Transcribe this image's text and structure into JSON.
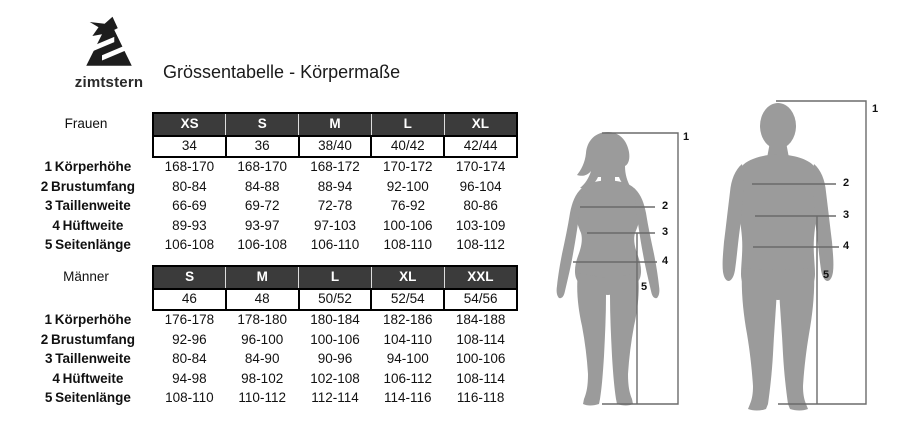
{
  "brand": {
    "name": "zimtstern"
  },
  "title": "Grössentabelle - Körpermaße",
  "tables": [
    {
      "group_label": "Frauen",
      "sizes": [
        "XS",
        "S",
        "M",
        "L",
        "XL"
      ],
      "size_numbers": [
        "34",
        "36",
        "38/40",
        "40/42",
        "42/44"
      ],
      "rows": [
        {
          "num": "1",
          "label": "Körperhöhe",
          "values": [
            "168-170",
            "168-170",
            "168-172",
            "170-172",
            "170-174"
          ]
        },
        {
          "num": "2",
          "label": "Brustumfang",
          "values": [
            "80-84",
            "84-88",
            "88-94",
            "92-100",
            "96-104"
          ]
        },
        {
          "num": "3",
          "label": "Taillenweite",
          "values": [
            "66-69",
            "69-72",
            "72-78",
            "76-92",
            "80-86"
          ]
        },
        {
          "num": "4",
          "label": "Hüftweite",
          "values": [
            "89-93",
            "93-97",
            "97-103",
            "100-106",
            "103-109"
          ]
        },
        {
          "num": "5",
          "label": "Seitenlänge",
          "values": [
            "106-108",
            "106-108",
            "106-110",
            "108-110",
            "108-112"
          ]
        }
      ]
    },
    {
      "group_label": "Männer",
      "sizes": [
        "S",
        "M",
        "L",
        "XL",
        "XXL"
      ],
      "size_numbers": [
        "46",
        "48",
        "50/52",
        "52/54",
        "54/56"
      ],
      "rows": [
        {
          "num": "1",
          "label": "Körperhöhe",
          "values": [
            "176-178",
            "178-180",
            "180-184",
            "182-186",
            "184-188"
          ]
        },
        {
          "num": "2",
          "label": "Brustumfang",
          "values": [
            "92-96",
            "96-100",
            "100-106",
            "104-110",
            "108-114"
          ]
        },
        {
          "num": "3",
          "label": "Taillenweite",
          "values": [
            "80-84",
            "84-90",
            "90-96",
            "94-100",
            "100-106"
          ]
        },
        {
          "num": "4",
          "label": "Hüftweite",
          "values": [
            "94-98",
            "98-102",
            "102-108",
            "106-112",
            "108-114"
          ]
        },
        {
          "num": "5",
          "label": "Seitenlänge",
          "values": [
            "108-110",
            "110-112",
            "112-114",
            "114-116",
            "116-118"
          ]
        }
      ]
    }
  ],
  "figures": [
    {
      "name": "female-silhouette",
      "markers": [
        "1",
        "2",
        "3",
        "4",
        "5"
      ]
    },
    {
      "name": "male-silhouette",
      "markers": [
        "1",
        "2",
        "3",
        "4",
        "5"
      ]
    }
  ],
  "colors": {
    "header_bg": "#3b3b3b",
    "header_text": "#ffffff",
    "silhouette": "#9b9b9b",
    "measure_line": "#6b6b6b",
    "text": "#111111"
  }
}
